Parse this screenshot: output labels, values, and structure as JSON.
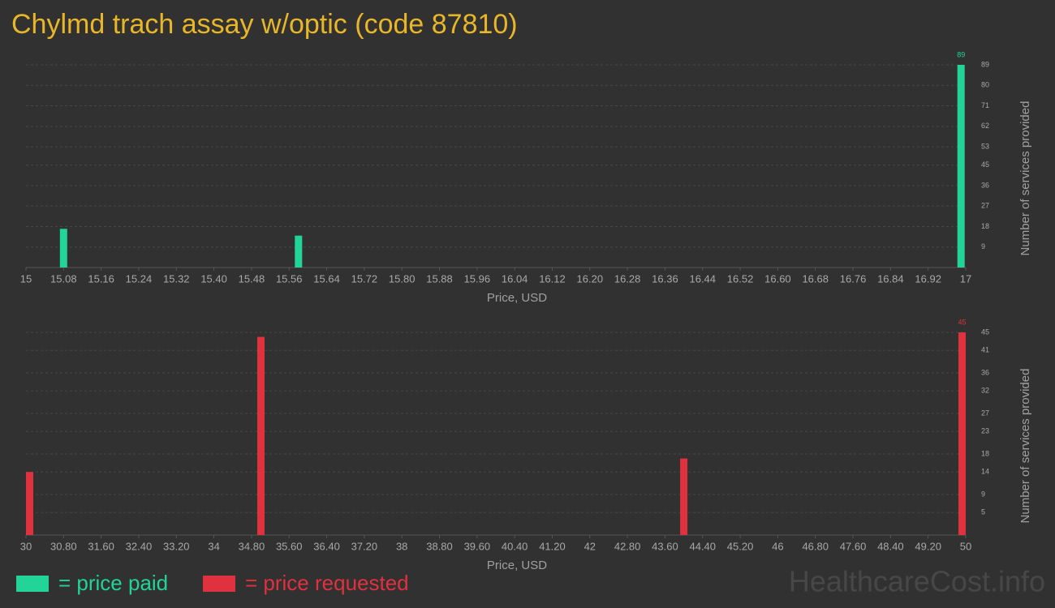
{
  "title": "Chylmd trach assay w/optic (code 87810)",
  "chart_data": [
    {
      "type": "bar",
      "x_label": "Price, USD",
      "y_label": "Number of services provided",
      "x": [
        15.08,
        15.58,
        16.99
      ],
      "values": [
        17,
        14,
        89
      ],
      "color": "#22d497",
      "xlim": [
        15,
        17
      ],
      "ylim": [
        0,
        89
      ],
      "xticks": [
        15,
        15.08,
        15.16,
        15.24,
        15.32,
        {
          "value": 15.4,
          "label": "15.40"
        },
        15.48,
        15.56,
        15.64,
        15.72,
        {
          "value": 15.8,
          "label": "15.80"
        },
        15.88,
        15.96,
        16.04,
        16.12,
        {
          "value": 16.2,
          "label": "16.20"
        },
        16.28,
        16.36,
        16.44,
        16.52,
        {
          "value": 16.6,
          "label": "16.60"
        },
        16.68,
        16.76,
        16.84,
        16.92,
        17
      ],
      "yticks": [
        9,
        18,
        27,
        36,
        45,
        53,
        62,
        71,
        80,
        89
      ],
      "grid": true
    },
    {
      "type": "bar",
      "x_label": "Price, USD",
      "y_label": "Number of services provided",
      "x": [
        30,
        35,
        44,
        50
      ],
      "values": [
        14,
        44,
        17,
        45
      ],
      "color": "#e0313f",
      "xlim": [
        30,
        50
      ],
      "ylim": [
        0,
        45
      ],
      "xticks": [
        30,
        {
          "value": 30.8,
          "label": "30.80"
        },
        {
          "value": 31.6,
          "label": "31.60"
        },
        {
          "value": 32.4,
          "label": "32.40"
        },
        {
          "value": 33.2,
          "label": "33.20"
        },
        34,
        {
          "value": 34.8,
          "label": "34.80"
        },
        {
          "value": 35.6,
          "label": "35.60"
        },
        {
          "value": 36.4,
          "label": "36.40"
        },
        {
          "value": 37.2,
          "label": "37.20"
        },
        38,
        {
          "value": 38.8,
          "label": "38.80"
        },
        {
          "value": 39.6,
          "label": "39.60"
        },
        {
          "value": 40.4,
          "label": "40.40"
        },
        {
          "value": 41.2,
          "label": "41.20"
        },
        42,
        {
          "value": 42.8,
          "label": "42.80"
        },
        {
          "value": 43.6,
          "label": "43.60"
        },
        {
          "value": 44.4,
          "label": "44.40"
        },
        {
          "value": 45.2,
          "label": "45.20"
        },
        46,
        {
          "value": 46.8,
          "label": "46.80"
        },
        {
          "value": 47.6,
          "label": "47.60"
        },
        {
          "value": 48.4,
          "label": "48.40"
        },
        {
          "value": 49.2,
          "label": "49.20"
        },
        50
      ],
      "yticks": [
        5,
        9,
        14,
        18,
        23,
        27,
        32,
        36,
        41,
        45
      ],
      "grid": true
    }
  ],
  "legend": [
    {
      "label": "= price paid",
      "color": "#22d497"
    },
    {
      "label": "= price requested",
      "color": "#e0313f"
    }
  ],
  "watermark": "HealthcareCost.info"
}
